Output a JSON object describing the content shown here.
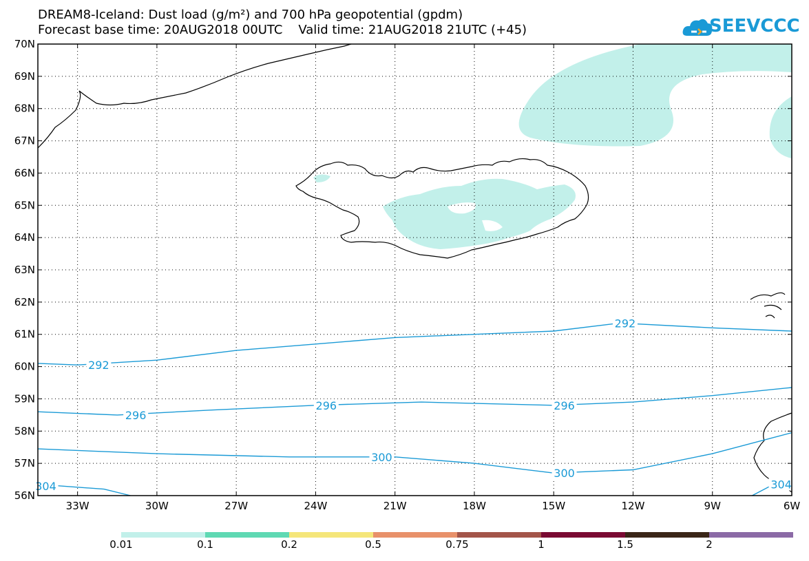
{
  "title": {
    "line1": "DREAM8-Iceland: Dust load (g/m²) and 700 hPa geopotential (gpdm)",
    "line2": "Forecast base time: 20AUG2018 00UTC    Valid time: 21AUG2018 21UTC (+45)"
  },
  "logo": {
    "text": "SEEVCCC",
    "icon": "cloud-icon",
    "color": "#1a9ad6"
  },
  "map": {
    "lat_range": [
      56,
      70
    ],
    "lon_range": [
      -34.5,
      -6
    ],
    "lat_labels": [
      "56N",
      "57N",
      "58N",
      "59N",
      "60N",
      "61N",
      "62N",
      "63N",
      "64N",
      "65N",
      "66N",
      "67N",
      "68N",
      "69N",
      "70N"
    ],
    "lon_labels": [
      "33W",
      "30W",
      "27W",
      "24W",
      "21W",
      "18W",
      "15W",
      "12W",
      "9W",
      "6W"
    ],
    "contour_color": "#1a9ad6",
    "dust_fill_color": "#c2f0ea",
    "contours": [
      {
        "label": "292",
        "points": [
          [
            -34.5,
            60.1
          ],
          [
            -33,
            60.05
          ],
          [
            -30,
            60.2
          ],
          [
            -27,
            60.5
          ],
          [
            -24,
            60.7
          ],
          [
            -21,
            60.9
          ],
          [
            -18,
            61.0
          ],
          [
            -15,
            61.1
          ],
          [
            -12.5,
            61.35
          ],
          [
            -9,
            61.2
          ],
          [
            -6,
            61.1
          ]
        ],
        "label_positions": [
          [
            -32.2,
            60.05
          ],
          [
            -12.3,
            61.35
          ]
        ]
      },
      {
        "label": "296",
        "points": [
          [
            -34.5,
            58.6
          ],
          [
            -31.5,
            58.5
          ],
          [
            -28,
            58.65
          ],
          [
            -24,
            58.8
          ],
          [
            -20,
            58.9
          ],
          [
            -15,
            58.8
          ],
          [
            -12,
            58.9
          ],
          [
            -9,
            59.1
          ],
          [
            -6,
            59.35
          ]
        ],
        "label_positions": [
          [
            -30.8,
            58.5
          ],
          [
            -23.6,
            58.8
          ],
          [
            -14.6,
            58.8
          ]
        ]
      },
      {
        "label": "300",
        "points": [
          [
            -34.5,
            57.45
          ],
          [
            -30,
            57.3
          ],
          [
            -25,
            57.2
          ],
          [
            -21,
            57.2
          ],
          [
            -18,
            57.0
          ],
          [
            -15,
            56.7
          ],
          [
            -12,
            56.8
          ],
          [
            -9,
            57.3
          ],
          [
            -6,
            57.95
          ]
        ],
        "label_positions": [
          [
            -21.5,
            57.2
          ],
          [
            -14.6,
            56.7
          ]
        ]
      },
      {
        "label": "304",
        "points": [
          [
            -34.5,
            56.35
          ],
          [
            -32,
            56.2
          ],
          [
            -31,
            56.0
          ]
        ],
        "label_positions": [
          [
            -34.2,
            56.3
          ]
        ]
      },
      {
        "label": "304",
        "points": [
          [
            -7.5,
            56.0
          ],
          [
            -6.8,
            56.3
          ],
          [
            -6,
            56.5
          ]
        ],
        "label_positions": [
          [
            -6.4,
            56.35
          ]
        ]
      }
    ]
  },
  "colorbar": {
    "values": [
      "0.01",
      "0.1",
      "0.2",
      "0.5",
      "0.75",
      "1",
      "1.5",
      "2"
    ],
    "colors": [
      "#c2f0ea",
      "#5fd9b3",
      "#f5e67a",
      "#e8916a",
      "#a3554a",
      "#7a0a33",
      "#3a2618",
      "#8b6aa6"
    ]
  }
}
